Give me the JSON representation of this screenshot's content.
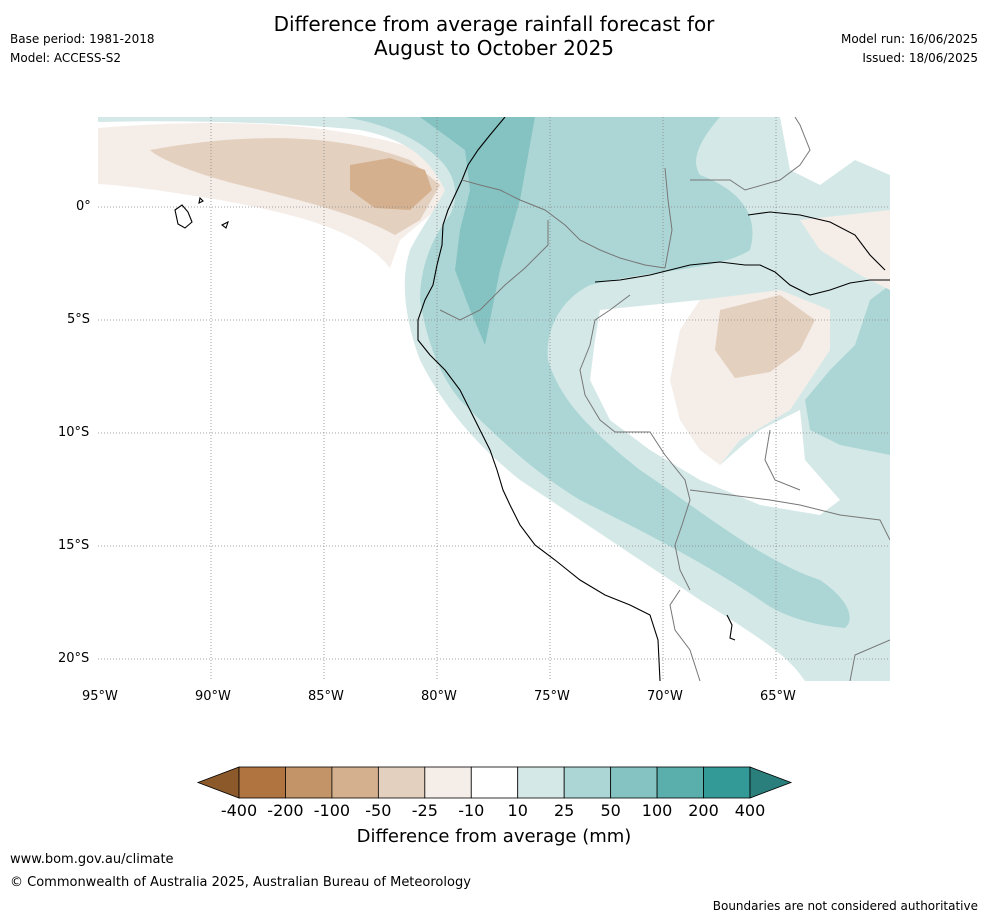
{
  "header": {
    "title_line1": "Difference from average rainfall forecast for",
    "title_line2": "August to October 2025",
    "base_period": "Base period: 1981-2018",
    "model": "Model: ACCESS-S2",
    "model_run": "Model run: 16/06/2025",
    "issued": "Issued: 18/06/2025"
  },
  "map": {
    "lat_labels": [
      "0°",
      "5°S",
      "10°S",
      "15°S",
      "20°S"
    ],
    "lon_labels": [
      "95°W",
      "90°W",
      "85°W",
      "80°W",
      "75°W",
      "70°W",
      "65°W"
    ],
    "grid": true
  },
  "colorbar": {
    "title": "Difference from average (mm)",
    "ticks": [
      "-400",
      "-200",
      "-100",
      "-50",
      "-25",
      "-10",
      "10",
      "25",
      "50",
      "100",
      "200",
      "400"
    ],
    "colors": [
      "#8c5a2a",
      "#b07440",
      "#c49469",
      "#d5b08e",
      "#e4d0bf",
      "#f5ede8",
      "#ffffff",
      "#d4e9e7",
      "#acd6d5",
      "#84c3c1",
      "#5aaeac",
      "#349a97",
      "#2a7f7c"
    ]
  },
  "footer": {
    "url": "www.bom.gov.au/climate",
    "copyright": "© Commonwealth of Australia 2025, Australian Bureau of Meteorology",
    "disclaimer": "Boundaries are not considered authoritative"
  }
}
